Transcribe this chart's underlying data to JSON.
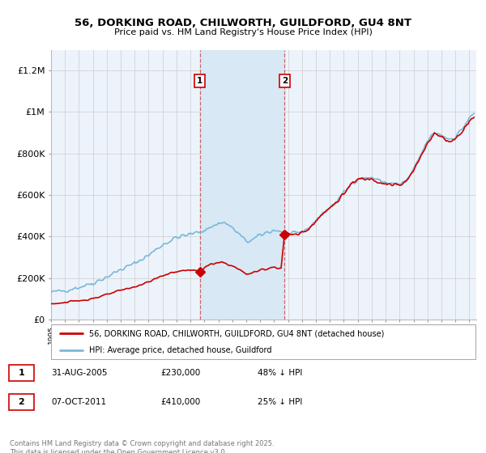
{
  "title": "56, DORKING ROAD, CHILWORTH, GUILDFORD, GU4 8NT",
  "subtitle": "Price paid vs. HM Land Registry's House Price Index (HPI)",
  "ylim": [
    0,
    1300000
  ],
  "yticks": [
    0,
    200000,
    400000,
    600000,
    800000,
    1000000,
    1200000
  ],
  "ytick_labels": [
    "£0",
    "£200K",
    "£400K",
    "£600K",
    "£800K",
    "£1M",
    "£1.2M"
  ],
  "hpi_color": "#7ab8d8",
  "price_color": "#cc0000",
  "background_color": "#edf3fb",
  "shaded_region_color": "#d8e8f5",
  "purchase1": {
    "label": "1",
    "date": "31-AUG-2005",
    "price": "£230,000",
    "hpi_rel": "48% ↓ HPI"
  },
  "purchase2": {
    "label": "2",
    "date": "07-OCT-2011",
    "price": "£410,000",
    "hpi_rel": "25% ↓ HPI"
  },
  "legend1": "56, DORKING ROAD, CHILWORTH, GUILDFORD, GU4 8NT (detached house)",
  "legend2": "HPI: Average price, detached house, Guildford",
  "footer": "Contains HM Land Registry data © Crown copyright and database right 2025.\nThis data is licensed under the Open Government Licence v3.0.",
  "marker1_x": 2005.67,
  "marker1_y": 230000,
  "marker2_x": 2011.75,
  "marker2_y": 410000,
  "shade_x1": 2005.67,
  "shade_x2": 2011.75,
  "xmin": 1995,
  "xmax": 2025.5
}
